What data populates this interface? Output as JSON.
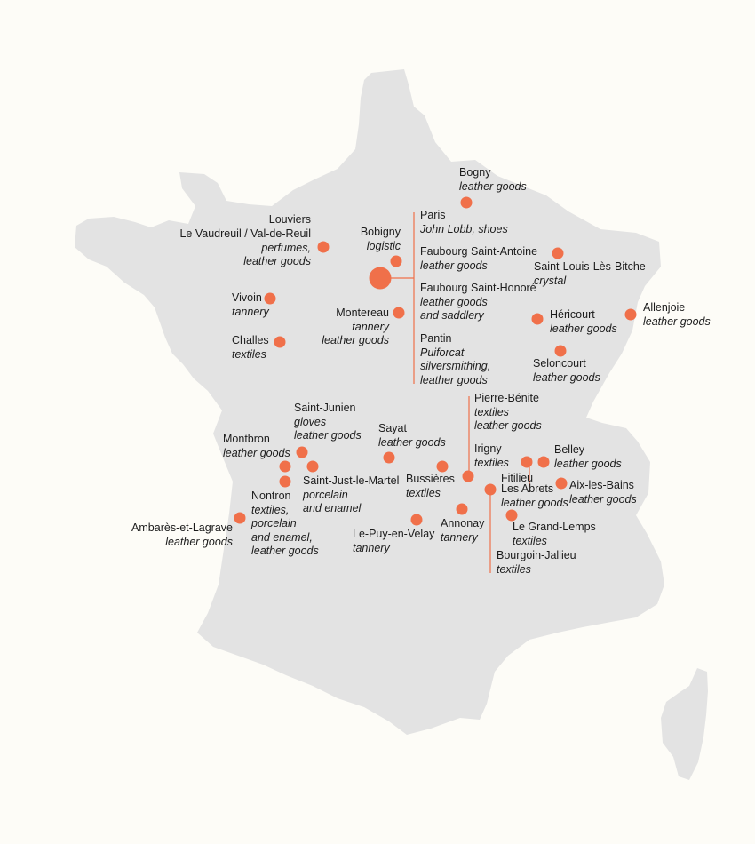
{
  "colors": {
    "background": "#fdfcf7",
    "land": "#e3e3e3",
    "marker": "#f0704a",
    "leader": "#f0704a",
    "text": "#1c1c1c"
  },
  "locations": [
    {
      "id": "bogny",
      "name": "Bogny",
      "activity": [
        "leather goods"
      ]
    },
    {
      "id": "louviers",
      "name": "Louviers",
      "activity": []
    },
    {
      "id": "vaudreuil",
      "name": "Le Vaudreuil / Val-de-Reuil",
      "activity": [
        "perfumes,",
        "leather goods"
      ]
    },
    {
      "id": "bobigny",
      "name": "Bobigny",
      "activity": [
        "logistic"
      ]
    },
    {
      "id": "paris",
      "name": "Paris",
      "activity": [
        "John Lobb, shoes"
      ]
    },
    {
      "id": "faubourg-saint-antoine",
      "name": "Faubourg Saint-Antoine",
      "activity": [
        "leather goods"
      ]
    },
    {
      "id": "saint-louis",
      "name": "Saint-Louis-Lès-Bitche",
      "activity": [
        "crystal"
      ]
    },
    {
      "id": "faubourg-saint-honore",
      "name": "Faubourg Saint-Honoré",
      "activity": [
        "leather goods",
        "and saddlery"
      ]
    },
    {
      "id": "vivoin",
      "name": "Vivoin",
      "activity": [
        "tannery"
      ]
    },
    {
      "id": "montereau",
      "name": "Montereau",
      "activity": [
        "tannery",
        "leather goods"
      ]
    },
    {
      "id": "allenjoie",
      "name": "Allenjoie",
      "activity": [
        "leather goods"
      ]
    },
    {
      "id": "hericourt",
      "name": "Héricourt",
      "activity": [
        "leather goods"
      ]
    },
    {
      "id": "challes",
      "name": "Challes",
      "activity": [
        "textiles"
      ]
    },
    {
      "id": "pantin",
      "name": "Pantin",
      "activity": [
        "Puiforcat",
        "silversmithing,",
        "leather goods"
      ]
    },
    {
      "id": "seloncourt",
      "name": "Seloncourt",
      "activity": [
        "leather goods"
      ]
    },
    {
      "id": "pierre-benite",
      "name": "Pierre-Bénite",
      "activity": [
        "textiles",
        "leather goods"
      ]
    },
    {
      "id": "saint-junien",
      "name": "Saint-Junien",
      "activity": [
        "gloves",
        "leather goods"
      ]
    },
    {
      "id": "sayat",
      "name": "Sayat",
      "activity": [
        "leather goods"
      ]
    },
    {
      "id": "montbron",
      "name": "Montbron",
      "activity": [
        "leather goods"
      ]
    },
    {
      "id": "irigny",
      "name": "Irigny",
      "activity": [
        "textiles"
      ]
    },
    {
      "id": "belley",
      "name": "Belley",
      "activity": [
        "leather goods"
      ]
    },
    {
      "id": "fitilieu",
      "name": "Fitilieu",
      "activity": []
    },
    {
      "id": "saint-just",
      "name": "Saint-Just-le-Martel",
      "activity": [
        "porcelain",
        "and enamel"
      ]
    },
    {
      "id": "bussieres",
      "name": "Bussières",
      "activity": [
        "textiles"
      ]
    },
    {
      "id": "les-abrets",
      "name": "Les Abrets",
      "activity": [
        "leather goods"
      ]
    },
    {
      "id": "aix",
      "name": "Aix-les-Bains",
      "activity": [
        "leather goods"
      ]
    },
    {
      "id": "nontron",
      "name": "Nontron",
      "activity": [
        "textiles,",
        "porcelain",
        "and enamel,",
        "leather goods"
      ]
    },
    {
      "id": "ambares",
      "name": "Ambarès-et-Lagrave",
      "activity": [
        "leather goods"
      ]
    },
    {
      "id": "le-puy",
      "name": "Le-Puy-en-Velay",
      "activity": [
        "tannery"
      ]
    },
    {
      "id": "annonay",
      "name": "Annonay",
      "activity": [
        "tannery"
      ]
    },
    {
      "id": "le-grand-lemps",
      "name": "Le Grand-Lemps",
      "activity": [
        "textiles"
      ]
    },
    {
      "id": "bourgoin",
      "name": "Bourgoin-Jallieu",
      "activity": [
        "textiles"
      ]
    }
  ]
}
